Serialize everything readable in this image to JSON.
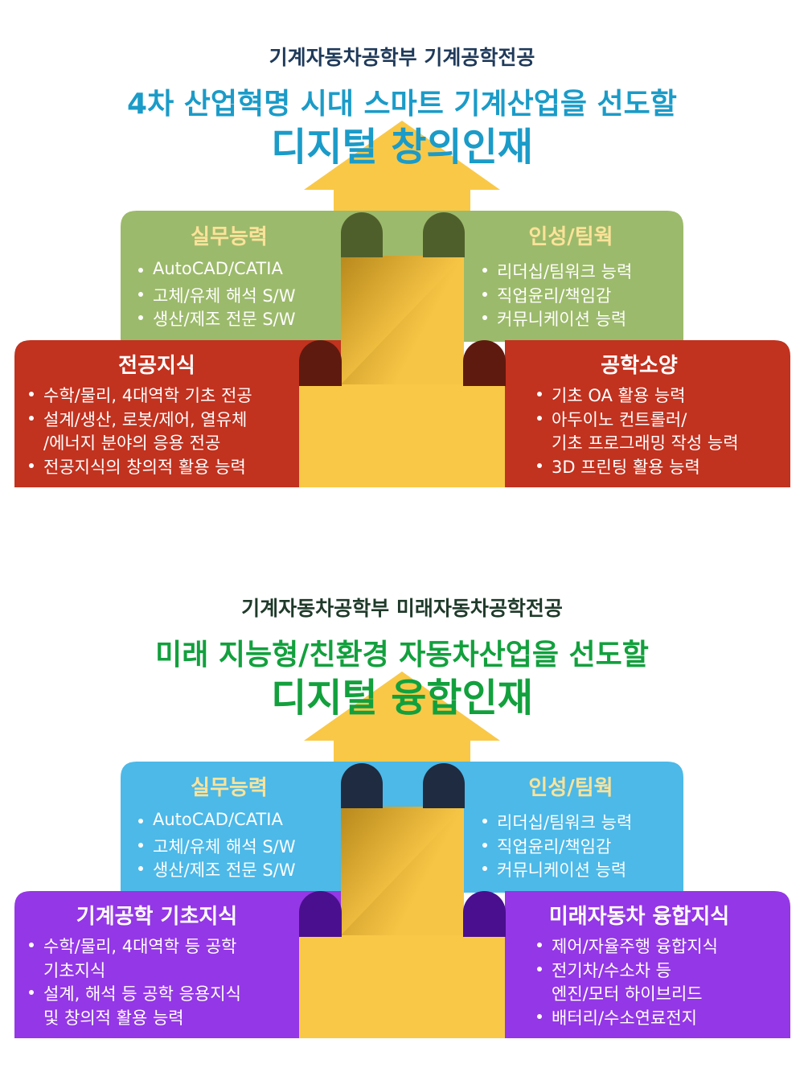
{
  "sections": [
    {
      "department": "기계자동차공학부 기계공학전공",
      "title_line1": "4차 산업혁명 시대 스마트 기계산업을 선도할",
      "title_line2": "디지털 창의인재",
      "boxes": [
        {
          "title": "실무능력",
          "items": [
            [
              "AutoCAD/CATIA"
            ],
            [
              "고체/유체 해석 S/W"
            ],
            [
              "생산/제조 전문 S/W"
            ]
          ]
        },
        {
          "title": "인성/팀웍",
          "items": [
            [
              "리더십/팀워크 능력"
            ],
            [
              "직업윤리/책임감"
            ],
            [
              "커뮤니케이션 능력"
            ]
          ]
        },
        {
          "title": "전공지식",
          "items": [
            [
              "수학/물리, 4대역학 기초 전공"
            ],
            [
              "설계/생산, 로봇/제어, 열유체",
              "/에너지  분야의 응용 전공"
            ],
            [
              "전공지식의 창의적 활용 능력"
            ]
          ]
        },
        {
          "title": "공학소양",
          "items": [
            [
              "기초 OA 활용 능력"
            ],
            [
              "아두이노 컨트롤러/",
              "기초 프로그래밍 작성 능력"
            ],
            [
              "3D 프린팅 활용 능력"
            ]
          ]
        }
      ]
    },
    {
      "department": "기계자동차공학부 미래자동차공학전공",
      "title_line1": "미래 지능형/친환경 자동차산업을 선도할",
      "title_line2": "디지털 융합인재",
      "boxes": [
        {
          "title": "실무능력",
          "items": [
            [
              "AutoCAD/CATIA"
            ],
            [
              "고체/유체 해석 S/W"
            ],
            [
              "생산/제조 전문 S/W"
            ]
          ]
        },
        {
          "title": "인성/팀웍",
          "items": [
            [
              "리더십/팀워크 능력"
            ],
            [
              "직업윤리/책임감"
            ],
            [
              "커뮤니케이션 능력"
            ]
          ]
        },
        {
          "title": "기계공학 기초지식",
          "items": [
            [
              "수학/물리, 4대역학 등 공학",
              "기초지식"
            ],
            [
              "설계, 해석 등 공학 응용지식",
              "및 창의적 활용 능력"
            ]
          ]
        },
        {
          "title": "미래자동차 융합지식",
          "items": [
            [
              "제어/자율주행 융합지식"
            ],
            [
              "전기차/수소차 등",
              "엔진/모터 하이브리드"
            ],
            [
              "배터리/수소연료전지"
            ]
          ]
        }
      ]
    }
  ]
}
